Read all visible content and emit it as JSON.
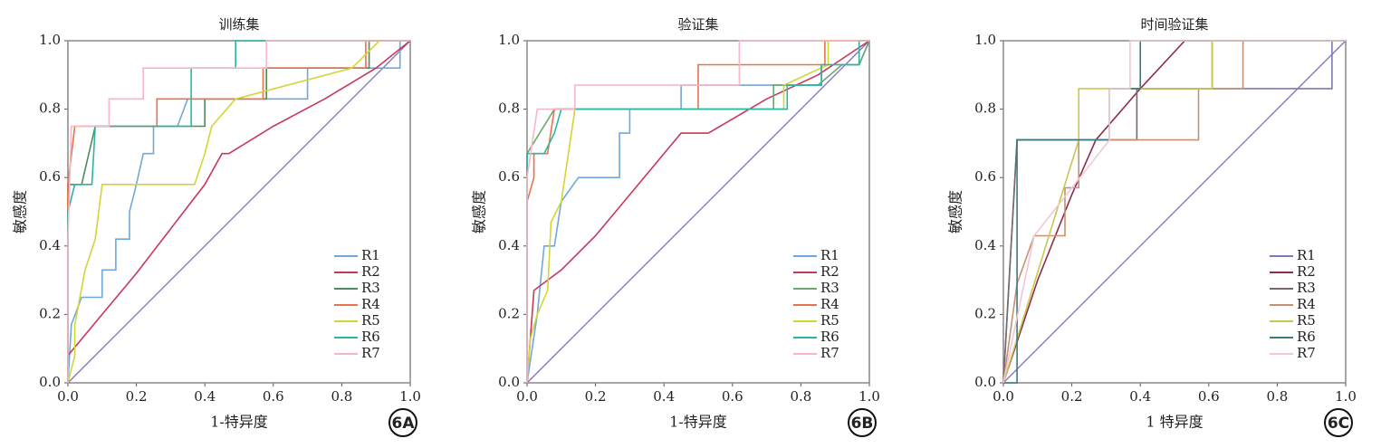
{
  "chart_data": [
    {
      "type": "line",
      "title": "训练集",
      "x_label": "1-特异度",
      "y_label": "敏感度",
      "label": "6A",
      "xlim": [
        0,
        1
      ],
      "ylim": [
        0,
        1
      ],
      "xticks": [
        {
          "value": 0,
          "label": "0.0"
        },
        0.2,
        0.4,
        0.6,
        0.8,
        {
          "value": 1,
          "label": "1.0"
        }
      ],
      "yticks": [
        {
          "value": 0,
          "label": "0.0"
        },
        0.2,
        0.4,
        0.6,
        0.8,
        {
          "value": 1,
          "label": "1.0"
        }
      ],
      "legend": "lower right",
      "series": [
        {
          "name": "R1",
          "color": "#6fa8dc",
          "x": [
            0,
            0.01,
            0.04,
            0.1,
            0.1,
            0.14,
            0.14,
            0.18,
            0.18,
            0.2,
            0.22,
            0.25,
            0.25,
            0.32,
            0.35,
            0.7,
            0.7,
            0.97,
            0.97,
            1
          ],
          "values": [
            0,
            0.17,
            0.25,
            0.25,
            0.33,
            0.33,
            0.42,
            0.42,
            0.5,
            0.58,
            0.67,
            0.67,
            0.75,
            0.75,
            0.83,
            0.83,
            0.92,
            0.92,
            1,
            1
          ]
        },
        {
          "name": "R2",
          "color": "#c8385a",
          "x": [
            0,
            0,
            0.1,
            0.2,
            0.3,
            0.4,
            0.45,
            0.47,
            0.6,
            0.75,
            0.9,
            1
          ],
          "values": [
            0,
            0.08,
            0.2,
            0.32,
            0.45,
            0.58,
            0.67,
            0.67,
            0.75,
            0.83,
            0.92,
            1
          ]
        },
        {
          "name": "R3",
          "color": "#4f8a5b",
          "x": [
            0,
            0,
            0.04,
            0.08,
            0.4,
            0.4,
            0.58,
            0.58,
            0.88,
            0.88,
            1
          ],
          "values": [
            0,
            0.58,
            0.58,
            0.75,
            0.75,
            0.83,
            0.83,
            0.92,
            0.92,
            1,
            1
          ]
        },
        {
          "name": "R4",
          "color": "#e8734a",
          "x": [
            0,
            0,
            0.02,
            0.26,
            0.26,
            0.57,
            0.57,
            0.87,
            0.87,
            1
          ],
          "values": [
            0,
            0.58,
            0.75,
            0.75,
            0.83,
            0.83,
            0.92,
            0.92,
            1,
            1
          ]
        },
        {
          "name": "R5",
          "color": "#d4d435",
          "x": [
            0,
            0.02,
            0.02,
            0.05,
            0.08,
            0.1,
            0.37,
            0.4,
            0.42,
            0.49,
            0.83,
            0.91,
            1
          ],
          "values": [
            0,
            0.08,
            0.17,
            0.33,
            0.42,
            0.58,
            0.58,
            0.67,
            0.75,
            0.83,
            0.92,
            1,
            1
          ]
        },
        {
          "name": "R6",
          "color": "#2ab5a5",
          "x": [
            0,
            0,
            0.02,
            0.07,
            0.08,
            0.36,
            0.36,
            0.49,
            0.49,
            1
          ],
          "values": [
            0,
            0.5,
            0.58,
            0.58,
            0.75,
            0.75,
            0.92,
            0.92,
            1,
            1
          ]
        },
        {
          "name": "R7",
          "color": "#f7b6c8",
          "x": [
            0,
            0,
            0.01,
            0.12,
            0.12,
            0.22,
            0.22,
            0.58,
            0.58,
            1
          ],
          "values": [
            0,
            0.42,
            0.75,
            0.75,
            0.83,
            0.83,
            0.92,
            0.92,
            1,
            1
          ]
        }
      ]
    },
    {
      "type": "line",
      "title": "验证集",
      "x_label": "1-特异度",
      "y_label": "敏感度",
      "label": "6B",
      "xlim": [
        0,
        1
      ],
      "ylim": [
        0,
        1
      ],
      "xticks": [
        {
          "value": 0,
          "label": "0.0"
        },
        0.2,
        0.4,
        0.6,
        0.8,
        {
          "value": 1,
          "label": "1.0"
        }
      ],
      "yticks": [
        {
          "value": 0,
          "label": "0.0"
        },
        0.2,
        0.4,
        0.6,
        0.8,
        {
          "value": 1,
          "label": "1.0"
        }
      ],
      "legend": "lower right",
      "series": [
        {
          "name": "R1",
          "color": "#6fa8dc",
          "x": [
            0,
            0.03,
            0.05,
            0.08,
            0.1,
            0.15,
            0.27,
            0.27,
            0.3,
            0.3,
            0.45,
            0.45,
            0.86,
            0.86,
            0.97,
            1
          ],
          "values": [
            0,
            0.2,
            0.4,
            0.4,
            0.53,
            0.6,
            0.6,
            0.73,
            0.73,
            0.8,
            0.8,
            0.87,
            0.87,
            0.93,
            0.93,
            1
          ]
        },
        {
          "name": "R2",
          "color": "#c8385a",
          "x": [
            0,
            0.02,
            0.1,
            0.2,
            0.3,
            0.45,
            0.53,
            0.7,
            0.85,
            1
          ],
          "values": [
            0,
            0.27,
            0.33,
            0.43,
            0.55,
            0.73,
            0.73,
            0.83,
            0.9,
            1
          ]
        },
        {
          "name": "R3",
          "color": "#6aa870",
          "x": [
            0,
            0,
            0.08,
            0.72,
            0.72,
            0.85,
            0.92,
            0.97,
            1
          ],
          "values": [
            0,
            0.67,
            0.8,
            0.8,
            0.87,
            0.87,
            0.93,
            0.93,
            1
          ]
        },
        {
          "name": "R4",
          "color": "#e8734a",
          "x": [
            0,
            0,
            0.02,
            0.02,
            0.06,
            0.08,
            0.5,
            0.5,
            0.87,
            0.87,
            1
          ],
          "values": [
            0,
            0.53,
            0.6,
            0.67,
            0.67,
            0.8,
            0.8,
            0.93,
            0.93,
            1,
            1
          ]
        },
        {
          "name": "R5",
          "color": "#d4d435",
          "x": [
            0,
            0.01,
            0.03,
            0.06,
            0.07,
            0.1,
            0.14,
            0.75,
            0.75,
            0.88,
            0.88,
            1
          ],
          "values": [
            0,
            0.13,
            0.2,
            0.27,
            0.47,
            0.53,
            0.8,
            0.8,
            0.87,
            0.93,
            1,
            1
          ]
        },
        {
          "name": "R6",
          "color": "#2ab5a5",
          "x": [
            0,
            0,
            0.05,
            0.08,
            0.1,
            0.76,
            0.76,
            0.86,
            0.86,
            0.97,
            0.97,
            1
          ],
          "values": [
            0,
            0.67,
            0.67,
            0.73,
            0.8,
            0.8,
            0.87,
            0.87,
            0.93,
            0.93,
            1,
            1
          ]
        },
        {
          "name": "R7",
          "color": "#f7b6c8",
          "x": [
            0,
            0,
            0.03,
            0.14,
            0.14,
            0.62,
            0.62,
            1
          ],
          "values": [
            0,
            0.6,
            0.8,
            0.8,
            0.87,
            0.87,
            1,
            1
          ]
        }
      ]
    },
    {
      "type": "line",
      "title": "时间验证集",
      "x_label": "1 特异度",
      "y_label": "敏感度",
      "label": "6C",
      "xlim": [
        0,
        1
      ],
      "ylim": [
        0,
        1
      ],
      "xticks": [
        {
          "value": 0,
          "label": "0.0"
        },
        0.2,
        0.4,
        0.6,
        0.8,
        {
          "value": 1,
          "label": "1.0"
        }
      ],
      "yticks": [
        {
          "value": 0,
          "label": "0.0"
        },
        0.2,
        0.4,
        0.6,
        0.8,
        {
          "value": 1,
          "label": "1.0"
        }
      ],
      "legend": "lower right",
      "series": [
        {
          "name": "R1",
          "color": "#7a7ab8",
          "x": [
            0,
            0.04,
            0.31,
            0.31,
            0.96,
            0.96,
            1
          ],
          "values": [
            0,
            0.71,
            0.71,
            0.86,
            0.86,
            1,
            1
          ]
        },
        {
          "name": "R2",
          "color": "#8b2c4a",
          "x": [
            0,
            0.1,
            0.2,
            0.27,
            0.4,
            0.53,
            1
          ],
          "values": [
            0,
            0.3,
            0.55,
            0.71,
            0.86,
            1,
            1
          ]
        },
        {
          "name": "R3",
          "color": "#7a6868",
          "x": [
            0,
            0.04,
            0.39,
            0.39,
            0.61,
            0.61,
            1
          ],
          "values": [
            0,
            0.71,
            0.71,
            0.86,
            0.86,
            1,
            1
          ]
        },
        {
          "name": "R4",
          "color": "#c89070",
          "x": [
            0,
            0.04,
            0.09,
            0.18,
            0.18,
            0.22,
            0.22,
            0.57,
            0.57,
            0.7,
            0.7,
            1
          ],
          "values": [
            0,
            0.29,
            0.43,
            0.43,
            0.57,
            0.57,
            0.71,
            0.71,
            0.86,
            0.86,
            1,
            1
          ]
        },
        {
          "name": "R5",
          "color": "#c8c850",
          "x": [
            0,
            0.22,
            0.22,
            0.61,
            0.61,
            1
          ],
          "values": [
            0,
            0.71,
            0.86,
            0.86,
            1,
            1
          ]
        },
        {
          "name": "R6",
          "color": "#3a7a80",
          "x": [
            0,
            0.04,
            0.04,
            0.31,
            0.31,
            0.4,
            0.4,
            1
          ],
          "values": [
            0,
            0,
            0.71,
            0.71,
            0.86,
            0.86,
            1,
            1
          ]
        },
        {
          "name": "R7",
          "color": "#f0c8d4",
          "x": [
            0,
            0.09,
            0.31,
            0.31,
            0.37,
            0.37,
            1
          ],
          "values": [
            0,
            0.43,
            0.71,
            0.86,
            0.86,
            1,
            1
          ]
        }
      ]
    }
  ]
}
